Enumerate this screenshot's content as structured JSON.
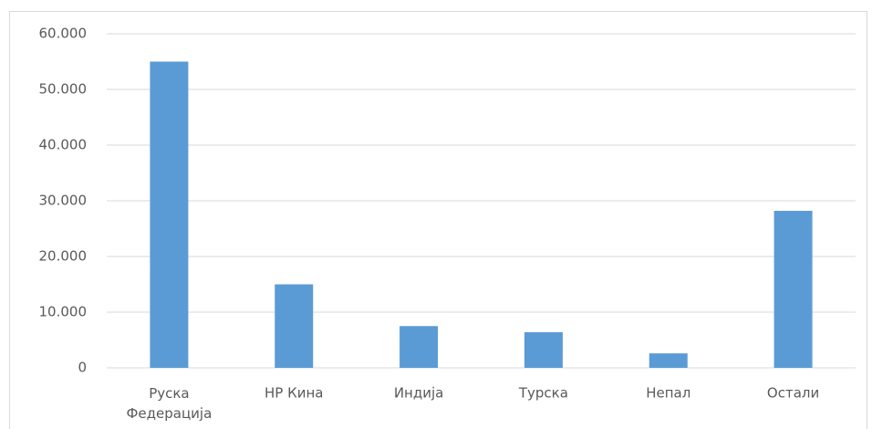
{
  "chart_data": {
    "type": "bar",
    "categories": [
      "Руска Федерација",
      "НР Кина",
      "Индија",
      "Турска",
      "Непал",
      "Остали"
    ],
    "values": [
      55000,
      15000,
      7500,
      6400,
      2600,
      28200
    ],
    "color": "#5b9bd5",
    "ylim": [
      0,
      60000
    ],
    "yticks": [
      0,
      {
        "value": 10000,
        "label": "10.000"
      },
      {
        "value": 20000,
        "label": "20.000"
      },
      {
        "value": 30000,
        "label": "30.000"
      },
      {
        "value": 40000,
        "label": "40.000"
      },
      {
        "value": 50000,
        "label": "50.000"
      },
      {
        "value": 60000,
        "label": "60.000"
      }
    ],
    "grid": true
  }
}
